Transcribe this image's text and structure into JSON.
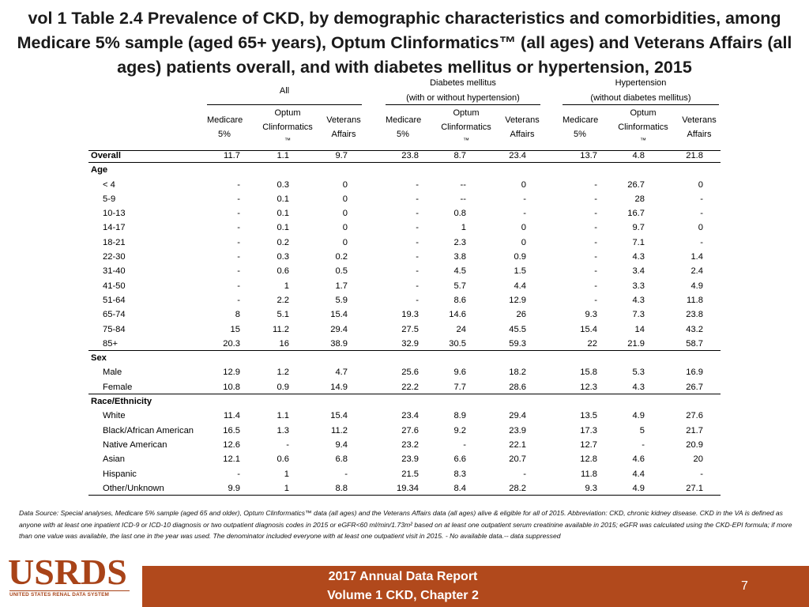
{
  "title": "vol 1 Table 2.4 Prevalence of CKD, by demographic characteristics and comorbidities, among Medicare 5% sample (aged 65+ years), Optum Clinformatics™ (all ages) and Veterans Affairs (all ages) patients overall, and with diabetes mellitus or hypertension, 2015",
  "groups": {
    "all": "All",
    "dm_line1": "Diabetes mellitus",
    "dm_line2": "(with or without hypertension)",
    "ht_line1": "Hypertension",
    "ht_line2": "(without diabetes mellitus)"
  },
  "columns": {
    "medicare_1": "Medicare",
    "medicare_2": "5%",
    "optum_1": "Optum",
    "optum_2": "Clinformatics",
    "optum_3": "™",
    "va_1": "Veterans",
    "va_2": "Affairs"
  },
  "rows": [
    {
      "label": "Overall",
      "type": "bold",
      "v": [
        "11.7",
        "1.1",
        "9.7",
        "23.8",
        "8.7",
        "23.4",
        "13.7",
        "4.8",
        "21.8"
      ]
    },
    {
      "label": "Age",
      "type": "header",
      "v": []
    },
    {
      "label": "< 4",
      "type": "indent",
      "v": [
        "-",
        "0.3",
        "0",
        "-",
        "--",
        "0",
        "-",
        "26.7",
        "0"
      ]
    },
    {
      "label": "5-9",
      "type": "indent",
      "v": [
        "-",
        "0.1",
        "0",
        "-",
        "--",
        "-",
        "-",
        "28",
        "-"
      ]
    },
    {
      "label": "10-13",
      "type": "indent",
      "v": [
        "-",
        "0.1",
        "0",
        "-",
        "0.8",
        "-",
        "-",
        "16.7",
        "-"
      ]
    },
    {
      "label": "14-17",
      "type": "indent",
      "v": [
        "-",
        "0.1",
        "0",
        "-",
        "1",
        "0",
        "-",
        "9.7",
        "0"
      ]
    },
    {
      "label": "18-21",
      "type": "indent",
      "v": [
        "-",
        "0.2",
        "0",
        "-",
        "2.3",
        "0",
        "-",
        "7.1",
        "-"
      ]
    },
    {
      "label": "22-30",
      "type": "indent",
      "v": [
        "-",
        "0.3",
        "0.2",
        "-",
        "3.8",
        "0.9",
        "-",
        "4.3",
        "1.4"
      ]
    },
    {
      "label": "31-40",
      "type": "indent",
      "v": [
        "-",
        "0.6",
        "0.5",
        "-",
        "4.5",
        "1.5",
        "-",
        "3.4",
        "2.4"
      ]
    },
    {
      "label": "41-50",
      "type": "indent",
      "v": [
        "-",
        "1",
        "1.7",
        "-",
        "5.7",
        "4.4",
        "-",
        "3.3",
        "4.9"
      ]
    },
    {
      "label": "51-64",
      "type": "indent",
      "v": [
        "-",
        "2.2",
        "5.9",
        "-",
        "8.6",
        "12.9",
        "-",
        "4.3",
        "11.8"
      ]
    },
    {
      "label": "65-74",
      "type": "indent",
      "v": [
        "8",
        "5.1",
        "15.4",
        "19.3",
        "14.6",
        "26",
        "9.3",
        "7.3",
        "23.8"
      ]
    },
    {
      "label": "75-84",
      "type": "indent",
      "v": [
        "15",
        "11.2",
        "29.4",
        "27.5",
        "24",
        "45.5",
        "15.4",
        "14",
        "43.2"
      ]
    },
    {
      "label": "85+",
      "type": "indent-line",
      "v": [
        "20.3",
        "16",
        "38.9",
        "32.9",
        "30.5",
        "59.3",
        "22",
        "21.9",
        "58.7"
      ]
    },
    {
      "label": "Sex",
      "type": "header",
      "v": []
    },
    {
      "label": "Male",
      "type": "indent",
      "v": [
        "12.9",
        "1.2",
        "4.7",
        "25.6",
        "9.6",
        "18.2",
        "15.8",
        "5.3",
        "16.9"
      ]
    },
    {
      "label": "Female",
      "type": "indent-line",
      "v": [
        "10.8",
        "0.9",
        "14.9",
        "22.2",
        "7.7",
        "28.6",
        "12.3",
        "4.3",
        "26.7"
      ]
    },
    {
      "label": "Race/Ethnicity",
      "type": "header",
      "v": []
    },
    {
      "label": "White",
      "type": "indent",
      "v": [
        "11.4",
        "1.1",
        "15.4",
        "23.4",
        "8.9",
        "29.4",
        "13.5",
        "4.9",
        "27.6"
      ]
    },
    {
      "label": "Black/African American",
      "type": "indent",
      "v": [
        "16.5",
        "1.3",
        "11.2",
        "27.6",
        "9.2",
        "23.9",
        "17.3",
        "5",
        "21.7"
      ]
    },
    {
      "label": "Native American",
      "type": "indent",
      "v": [
        "12.6",
        "-",
        "9.4",
        "23.2",
        "-",
        "22.1",
        "12.7",
        "-",
        "20.9"
      ]
    },
    {
      "label": "Asian",
      "type": "indent",
      "v": [
        "12.1",
        "0.6",
        "6.8",
        "23.9",
        "6.6",
        "20.7",
        "12.8",
        "4.6",
        "20"
      ]
    },
    {
      "label": "Hispanic",
      "type": "indent",
      "v": [
        "-",
        "1",
        "-",
        "21.5",
        "8.3",
        "-",
        "11.8",
        "4.4",
        "-"
      ]
    },
    {
      "label": "Other/Unknown",
      "type": "indent-line",
      "v": [
        "9.9",
        "1",
        "8.8",
        "19.34",
        "8.4",
        "28.2",
        "9.3",
        "4.9",
        "27.1"
      ]
    }
  ],
  "footnote": "Data Source: Special analyses, Medicare 5% sample (aged 65 and older), Optum Clinformatics™ data (all ages) and the Veterans Affairs data (all ages) alive & eligible for all of 2015. Abbreviation: CKD, chronic kidney disease. CKD in the VA is defined as anyone with at least one inpatient ICD-9 or ICD-10 diagnosis or two outpatient diagnosis codes in 2015 or eGFR<60 ml/min/1.73m² based on at least one outpatient serum creatinine available in 2015; eGFR was calculated using the CKD-EPI formula; if more than one value was available, the last one in the year was used. The denominator included everyone with at least one outpatient visit in 2015. - No available data.-- data suppressed",
  "footer": {
    "logo": "USRDS",
    "logo_sub": "UNITED STATES RENAL DATA SYSTEM",
    "report_line1": "2017 Annual Data Report",
    "report_line2": "Volume 1 CKD, Chapter 2",
    "page": "7"
  },
  "colors": {
    "footer_bg": "#b1491c",
    "logo": "#a84318"
  }
}
